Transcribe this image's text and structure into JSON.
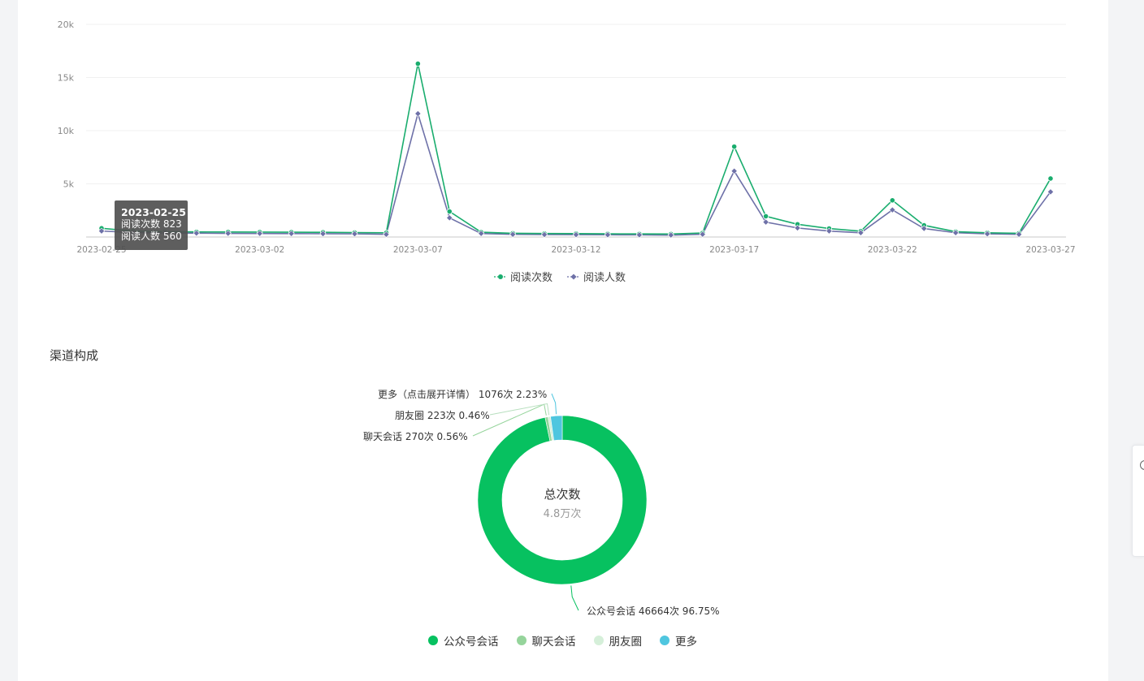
{
  "chart_data": [
    {
      "type": "line",
      "x": [
        "2023-02-25",
        "2023-02-26",
        "2023-02-27",
        "2023-02-28",
        "2023-03-01",
        "2023-03-02",
        "2023-03-03",
        "2023-03-04",
        "2023-03-05",
        "2023-03-06",
        "2023-03-07",
        "2023-03-08",
        "2023-03-09",
        "2023-03-10",
        "2023-03-11",
        "2023-03-12",
        "2023-03-13",
        "2023-03-14",
        "2023-03-15",
        "2023-03-16",
        "2023-03-17",
        "2023-03-18",
        "2023-03-19",
        "2023-03-20",
        "2023-03-21",
        "2023-03-22",
        "2023-03-23",
        "2023-03-24",
        "2023-03-25",
        "2023-03-26",
        "2023-03-27"
      ],
      "x_ticks": [
        "2023-02-25",
        "2023-03-02",
        "2023-03-07",
        "2023-03-12",
        "2023-03-17",
        "2023-03-22",
        "2023-03-27"
      ],
      "y_ticks": [
        "20k",
        "15k",
        "10k",
        "5k"
      ],
      "ylim": [
        0,
        20000
      ],
      "grid": true,
      "legend_position": "bottom",
      "series": [
        {
          "name": "阅读次数",
          "color": "#1aad6e",
          "values": [
            823,
            560,
            500,
            480,
            470,
            460,
            450,
            440,
            420,
            400,
            16300,
            2400,
            450,
            350,
            330,
            320,
            300,
            290,
            280,
            380,
            8500,
            1950,
            1200,
            800,
            550,
            3450,
            1100,
            500,
            400,
            350,
            5500
          ]
        },
        {
          "name": "阅读人数",
          "color": "#6e71a8",
          "values": [
            560,
            420,
            380,
            360,
            340,
            330,
            320,
            310,
            300,
            250,
            11600,
            1800,
            330,
            250,
            230,
            220,
            210,
            200,
            180,
            260,
            6200,
            1400,
            850,
            560,
            400,
            2550,
            800,
            400,
            300,
            250,
            4250
          ]
        }
      ],
      "tooltip": {
        "date": "2023-02-25",
        "rows": [
          "阅读次数 823",
          "阅读人数 560"
        ]
      }
    },
    {
      "type": "pie",
      "title": "渠道构成",
      "center_label": "总次数",
      "center_value": "4.8万次",
      "slices": [
        {
          "name": "公众号会话",
          "value": 46664,
          "percent": 96.75,
          "color": "#07c160",
          "label": "公众号会话 46664次 96.75%"
        },
        {
          "name": "聊天会话",
          "value": 270,
          "percent": 0.56,
          "color": "#95d49b",
          "label": "聊天会话 270次 0.56%"
        },
        {
          "name": "朋友圈",
          "value": 223,
          "percent": 0.46,
          "color": "#d5efd9",
          "label": "朋友圈 223次 0.46%"
        },
        {
          "name": "更多",
          "value": 1076,
          "percent": 2.23,
          "color": "#4fc6df",
          "label": "更多（点击展开详情） 1076次 2.23%"
        }
      ]
    }
  ]
}
